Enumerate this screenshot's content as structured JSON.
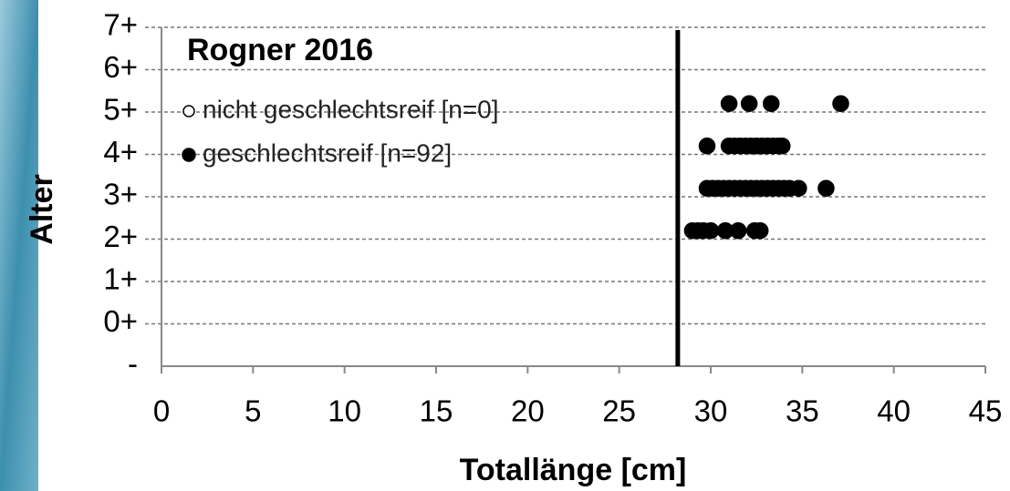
{
  "chart_data": {
    "type": "scatter",
    "title": "Rogner 2016",
    "x_label": "Totallänge [cm]",
    "y_label": "Alter",
    "xlim": [
      0,
      45
    ],
    "xticks": [
      0,
      5,
      10,
      15,
      20,
      25,
      30,
      35,
      40,
      45
    ],
    "ylim": [
      -1,
      7
    ],
    "yticks": [
      {
        "value": -1,
        "label": "-"
      },
      {
        "value": 0,
        "label": "0+"
      },
      {
        "value": 1,
        "label": "1+"
      },
      {
        "value": 2,
        "label": "2+"
      },
      {
        "value": 3,
        "label": "3+"
      },
      {
        "value": 4,
        "label": "4+"
      },
      {
        "value": 5,
        "label": "5+"
      },
      {
        "value": 6,
        "label": "6+"
      },
      {
        "value": 7,
        "label": "7+"
      }
    ],
    "grid": true,
    "vline_x": 28.2,
    "series": [
      {
        "name": "nicht geschlechtsreif [n=0]",
        "marker": "open",
        "color": "#000000",
        "x": [],
        "y": []
      },
      {
        "name": "geschlechtsreif [n=92]",
        "marker": "filled",
        "color": "#000000",
        "x": [
          29.0,
          29.3,
          29.6,
          30.0,
          30.8,
          31.5,
          32.4,
          32.7,
          29.8,
          30.1,
          30.4,
          30.7,
          31.0,
          31.3,
          31.6,
          31.9,
          32.2,
          32.5,
          32.8,
          33.1,
          33.4,
          33.7,
          34.0,
          34.3,
          34.8,
          36.3,
          29.8,
          31.0,
          31.3,
          31.6,
          31.9,
          32.2,
          32.5,
          32.8,
          33.1,
          33.4,
          33.7,
          33.9,
          31.0,
          32.1,
          33.3,
          37.1
        ],
        "y": [
          2.2,
          2.2,
          2.2,
          2.2,
          2.2,
          2.2,
          2.2,
          2.2,
          3.2,
          3.2,
          3.2,
          3.2,
          3.2,
          3.2,
          3.2,
          3.2,
          3.2,
          3.2,
          3.2,
          3.2,
          3.2,
          3.2,
          3.2,
          3.2,
          3.2,
          3.2,
          4.2,
          4.2,
          4.2,
          4.2,
          4.2,
          4.2,
          4.2,
          4.2,
          4.2,
          4.2,
          4.2,
          4.2,
          5.2,
          5.2,
          5.2,
          5.2
        ]
      }
    ]
  }
}
